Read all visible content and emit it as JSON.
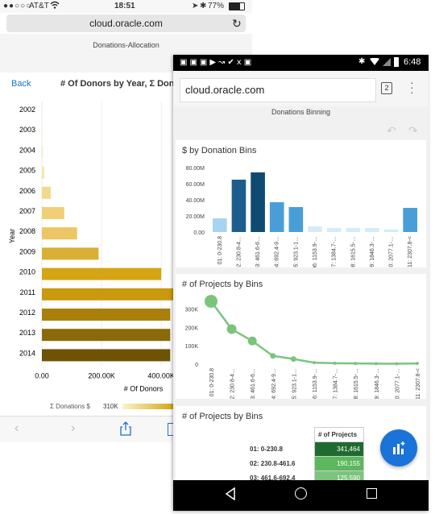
{
  "iphone": {
    "status": {
      "carrier": "AT&T",
      "time": "18:51",
      "battery": "77%"
    },
    "url": "cloud.oracle.com",
    "page_title": "Donations-Allocation",
    "back_label": "Back",
    "chart_title": "# Of Donors by Year, Σ Donati",
    "legend_label": "Σ Donations $",
    "legend_value": "310K"
  },
  "android": {
    "status": {
      "time": "6:48"
    },
    "url": "cloud.oracle.com",
    "tab_count": "2",
    "page_title": "Donations Binning",
    "card1_title": "$ by Donation Bins",
    "card2_title": "# of Projects by Bins",
    "card3_title": "# of Projects by Bins",
    "table": {
      "header": "# of Projects",
      "rows": [
        {
          "label": "01: 0-230.8",
          "value": "341,464",
          "color": "#1e6b2f"
        },
        {
          "label": "02: 230.8-461.6",
          "value": "190,155",
          "color": "#5cb85c"
        },
        {
          "label": "03: 461.6-692.4",
          "value": "125,590",
          "color": "#7cc47c"
        }
      ]
    }
  },
  "chart_data": [
    {
      "type": "bar",
      "orientation": "horizontal",
      "categories": [
        "2002",
        "2003",
        "2004",
        "2005",
        "2006",
        "2007",
        "2008",
        "2009",
        "2010",
        "2011",
        "2012",
        "2013",
        "2014"
      ],
      "values": [
        0,
        0,
        3000,
        8000,
        30000,
        75000,
        118000,
        190000,
        400000,
        440000,
        430000,
        430000,
        430000
      ],
      "colors": [
        "#f6e9b0",
        "#f6e9b0",
        "#f6e9b0",
        "#f6e6a6",
        "#f3d98a",
        "#f0cf75",
        "#ecc663",
        "#d9ae35",
        "#d4a514",
        "#c99a0e",
        "#a8800b",
        "#8a6a08",
        "#6e5306"
      ],
      "ylabel": "Year",
      "xlabel": "# Of Donors",
      "xticks": [
        "0.00",
        "200.00K",
        "400.00K"
      ],
      "xlim": [
        0,
        440000
      ]
    },
    {
      "type": "bar",
      "categories": [
        "01: 0-230.8",
        "02: 230.8-4…",
        "03: 461.6-6…",
        "04: 692.4-9…",
        "05: 923.1-1…",
        "06: 1153.9-…",
        "07: 1384.7-…",
        "08: 1615.5-…",
        "09: 1846.3-…",
        "10: 2077.1-…",
        "11: 2307.8-<"
      ],
      "values": [
        17,
        65,
        74,
        37,
        31,
        7,
        5,
        5,
        5,
        3,
        30
      ],
      "colors": [
        "#a8d4f2",
        "#1d5d8e",
        "#0f4a72",
        "#4a9ed8",
        "#4a9ed8",
        "#d4ebfa",
        "#d4ebfa",
        "#d4ebfa",
        "#d4ebfa",
        "#d4ebfa",
        "#4a9ed8"
      ],
      "yticks": [
        "0.00",
        "20.00M",
        "40.00M",
        "60.00M",
        "80.00M"
      ],
      "ylim": [
        0,
        80
      ]
    },
    {
      "type": "line",
      "categories": [
        "01: 0-230.8",
        "02: 230.8-4…",
        "03: 461.6-6…",
        "04: 692.4-9…",
        "05: 923.1-1…",
        "06: 1153.9-…",
        "07: 1384.7-…",
        "08: 1615.5-…",
        "09: 1846.3-…",
        "10: 2077.1-…",
        "11: 2307.8-<"
      ],
      "values": [
        341464,
        190155,
        125590,
        45000,
        28000,
        8000,
        5000,
        4000,
        3000,
        2000,
        4000
      ],
      "yticks": [
        "0",
        "100K",
        "200K",
        "300K"
      ],
      "ylim": [
        0,
        350000
      ],
      "color": "#7cc47c"
    }
  ]
}
